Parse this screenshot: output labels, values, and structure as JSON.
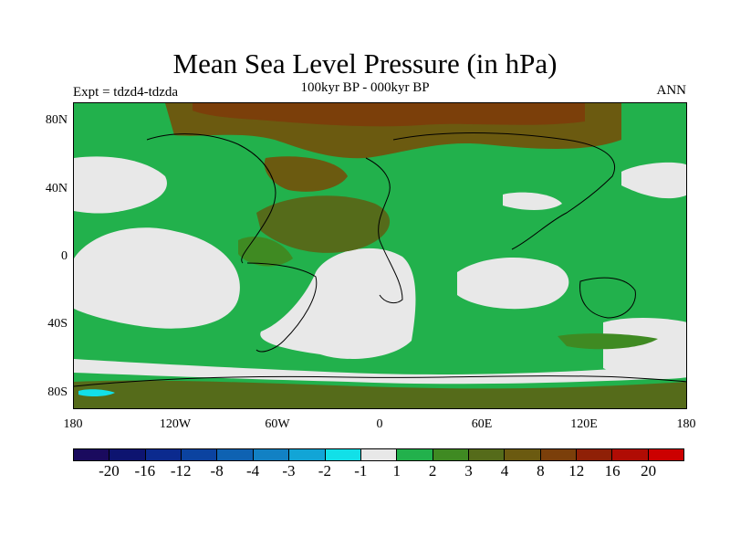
{
  "title": "Mean Sea Level Pressure (in hPa)",
  "subtitle": "100kyr BP - 000kyr BP",
  "experiment_label": "Expt = tdzd4-tdzda",
  "season_label": "ANN",
  "lat_labels": [
    "80N",
    "40N",
    "0",
    "40S",
    "80S"
  ],
  "lon_labels": [
    "180",
    "120W",
    "60W",
    "0",
    "60E",
    "120E",
    "180"
  ],
  "legend": {
    "colors": [
      "#1a0a5e",
      "#0d1470",
      "#0b2a8e",
      "#0b43a0",
      "#0e62b2",
      "#1281c4",
      "#12a5d6",
      "#12e0e8",
      "#e8e8e8",
      "#22b14c",
      "#3f8a22",
      "#556b1a",
      "#6b5a10",
      "#7b3f0a",
      "#8f2006",
      "#b00c04",
      "#cc0000"
    ],
    "tick_labels": [
      "-20",
      "-16",
      "-12",
      "-8",
      "-4",
      "-3",
      "-2",
      "-1",
      "1",
      "2",
      "3",
      "4",
      "8",
      "12",
      "16",
      "20"
    ]
  },
  "map_colors": {
    "ocean_light": "#e8e8e8",
    "green": "#22b14c",
    "dark_green": "#3f8a22",
    "olive": "#556b1a",
    "brown": "#6b5a10",
    "dark_brown": "#7b3f0a",
    "cyan": "#12e0e8",
    "coast": "#000000"
  }
}
